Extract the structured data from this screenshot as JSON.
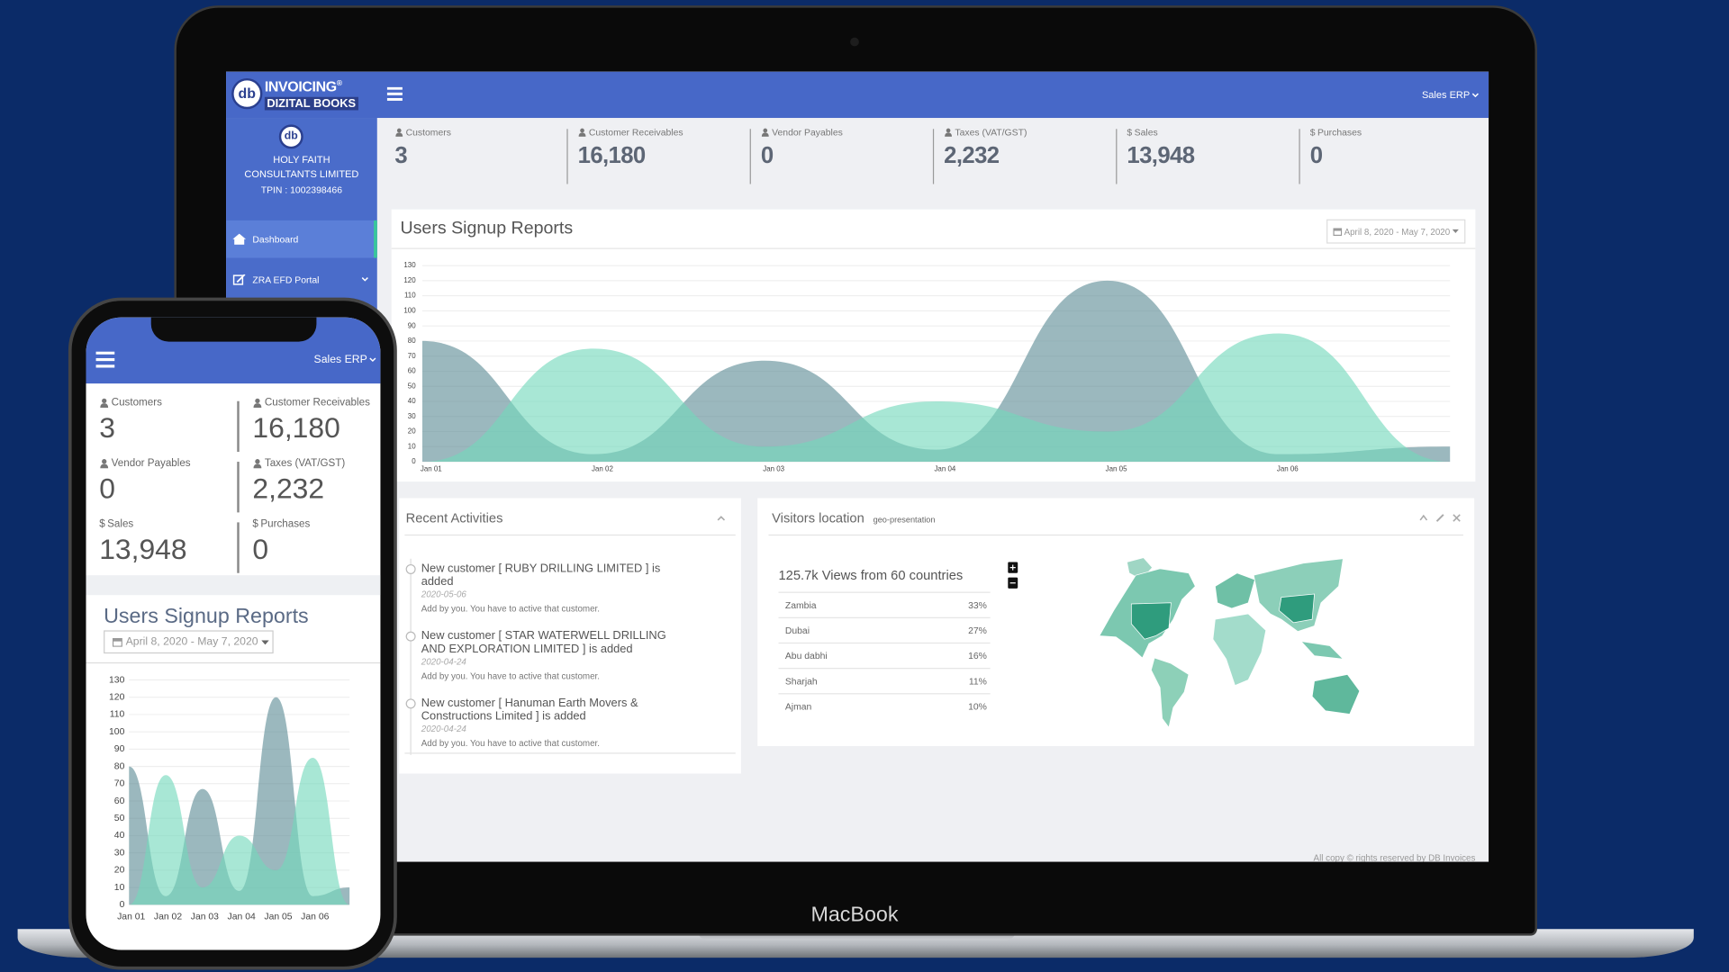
{
  "header": {
    "logo_mark": "db",
    "logo_top": "INVOICING",
    "logo_reg": "®",
    "logo_bottom": "DIZITAL BOOKS",
    "menu": "Sales ERP"
  },
  "sidebar": {
    "company": "HOLY FAITH CONSULTANTS LIMITED",
    "tpin": "TPIN : 1002398466",
    "menu": [
      {
        "label": "Dashboard"
      },
      {
        "label": "ZRA EFD Portal"
      }
    ]
  },
  "stats": [
    {
      "label": "Customers",
      "value": "3"
    },
    {
      "label": "Customer Receivables",
      "value": "16,180"
    },
    {
      "label": "Vendor Payables",
      "value": "0"
    },
    {
      "label": "Taxes (VAT/GST)",
      "value": "2,232"
    },
    {
      "icon": "$",
      "label": "Sales",
      "value": "13,948"
    },
    {
      "icon": "$",
      "label": "Purchases",
      "value": "0"
    }
  ],
  "chart_data": {
    "type": "area",
    "title": "Users Signup Reports",
    "date_range": "April 8, 2020 - May 7, 2020",
    "categories": [
      "Jan 01",
      "Jan 02",
      "Jan 03",
      "Jan 04",
      "Jan 05",
      "Jan 06",
      null
    ],
    "series": [
      {
        "color": "#5e8d96",
        "values": [
          80,
          5,
          67,
          8,
          120,
          5,
          10
        ]
      },
      {
        "color": "#73d9bb",
        "values": [
          0,
          75,
          10,
          40,
          20,
          85,
          0
        ]
      }
    ],
    "ylim": [
      0,
      130
    ],
    "yticks": [
      0,
      10,
      20,
      30,
      40,
      50,
      60,
      70,
      80,
      90,
      100,
      110,
      120,
      130
    ],
    "grid": true
  },
  "activities": {
    "title": "Recent Activities",
    "items": [
      {
        "text": "New customer [ RUBY DRILLING LIMITED ] is added",
        "date": "2020-05-06",
        "note": "Add by you. You have to active that customer."
      },
      {
        "text": "New customer [ STAR WATERWELL DRILLING AND EXPLORATION LIMITED ] is added",
        "date": "2020-04-24",
        "note": "Add by you. You have to active that customer."
      },
      {
        "text": "New customer [ Hanuman Earth Movers & Constructions Limited ] is added",
        "date": "2020-04-24",
        "note": "Add by you. You have to active that customer."
      }
    ]
  },
  "visitors": {
    "title": "Visitors location",
    "subtitle": "geo-presentation",
    "summary": "125.7k Views from 60 countries",
    "rows": [
      [
        "Zambia",
        "33%"
      ],
      [
        "Dubai",
        "27%"
      ],
      [
        "Abu dabhi",
        "16%"
      ],
      [
        "Sharjah",
        "11%"
      ],
      [
        "Ajman",
        "10%"
      ]
    ]
  },
  "footer": "All copy © rights reserved by DB Invoices",
  "device": "MacBook"
}
